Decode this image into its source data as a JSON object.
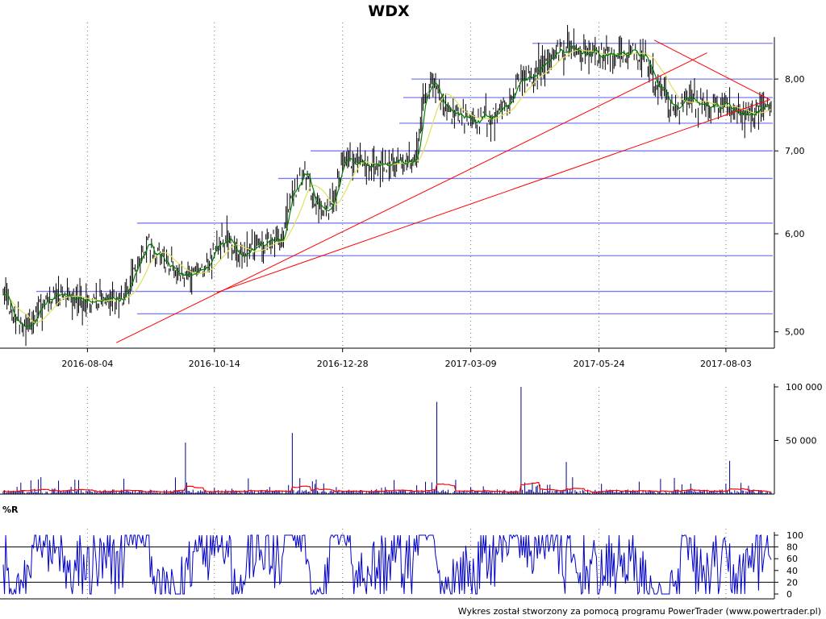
{
  "chart_data": [
    {
      "type": "ohlc",
      "title": "WDX",
      "x_tick_labels": [
        "2016-08-04",
        "2016-10-14",
        "2016-12-28",
        "2017-03-09",
        "2017-05-24",
        "2017-08-03"
      ],
      "y_tick_labels": [
        "5,00",
        "6,00",
        "7,00",
        "8,00"
      ],
      "y_ticks": [
        5.0,
        6.0,
        7.0,
        8.0
      ],
      "y_scale": "log",
      "ylim": [
        4.85,
        8.65
      ],
      "grid": true,
      "grid_lines_y": [
        8.55,
        8.0,
        7.73,
        7.37,
        7.0,
        6.65,
        6.12,
        5.76,
        5.39,
        5.17
      ],
      "price_path": [
        [
          0,
          5.45
        ],
        [
          8,
          5.12
        ],
        [
          20,
          5.0
        ],
        [
          30,
          5.28
        ],
        [
          45,
          5.35
        ],
        [
          60,
          5.3
        ],
        [
          80,
          5.28
        ],
        [
          95,
          5.32
        ],
        [
          105,
          5.6
        ],
        [
          115,
          5.9
        ],
        [
          125,
          5.72
        ],
        [
          135,
          5.6
        ],
        [
          145,
          5.55
        ],
        [
          155,
          5.6
        ],
        [
          165,
          5.72
        ],
        [
          170,
          5.92
        ],
        [
          180,
          5.95
        ],
        [
          190,
          5.75
        ],
        [
          200,
          5.85
        ],
        [
          212,
          5.92
        ],
        [
          222,
          5.92
        ],
        [
          230,
          6.45
        ],
        [
          240,
          6.75
        ],
        [
          248,
          6.35
        ],
        [
          258,
          6.25
        ],
        [
          265,
          6.55
        ],
        [
          272,
          6.9
        ],
        [
          285,
          6.85
        ],
        [
          300,
          6.82
        ],
        [
          315,
          6.85
        ],
        [
          325,
          6.85
        ],
        [
          330,
          7.0
        ],
        [
          335,
          7.7
        ],
        [
          342,
          7.95
        ],
        [
          350,
          7.65
        ],
        [
          360,
          7.5
        ],
        [
          375,
          7.4
        ],
        [
          390,
          7.48
        ],
        [
          400,
          7.6
        ],
        [
          410,
          7.95
        ],
        [
          425,
          8.1
        ],
        [
          435,
          8.35
        ],
        [
          450,
          8.45
        ],
        [
          465,
          8.4
        ],
        [
          480,
          8.35
        ],
        [
          495,
          8.4
        ],
        [
          505,
          8.4
        ],
        [
          512,
          8.3
        ],
        [
          520,
          7.9
        ],
        [
          528,
          7.7
        ],
        [
          535,
          7.55
        ],
        [
          545,
          7.7
        ],
        [
          555,
          7.62
        ],
        [
          570,
          7.58
        ],
        [
          580,
          7.58
        ],
        [
          590,
          7.45
        ],
        [
          600,
          7.55
        ],
        [
          610,
          7.6
        ]
      ],
      "moving_averages": [
        {
          "name": "short",
          "color": "#008000"
        },
        {
          "name": "long",
          "color": "#e0e060"
        }
      ],
      "trend_lines": [
        {
          "color": "#ff0000",
          "from": [
            90,
            4.9
          ],
          "to": [
            560,
            8.4
          ]
        },
        {
          "color": "#ff0000",
          "from": [
            170,
            5.38
          ],
          "to": [
            610,
            7.7
          ]
        },
        {
          "color": "#ff0000",
          "from": [
            518,
            8.6
          ],
          "to": [
            610,
            7.7
          ]
        }
      ]
    },
    {
      "type": "bar",
      "name": "volume",
      "y_tick_labels": [
        "100 000",
        "50 000"
      ],
      "y_ticks": [
        100000,
        50000
      ],
      "ylim": [
        0,
        100000
      ],
      "bar_color": "#00008b",
      "ma_color": "#ff0000",
      "spikes": [
        [
          145,
          48000
        ],
        [
          230,
          57000
        ],
        [
          345,
          86000
        ],
        [
          412,
          100000
        ],
        [
          448,
          30000
        ],
        [
          578,
          31000
        ]
      ]
    },
    {
      "type": "line",
      "title": "%R",
      "y_tick_labels": [
        "100",
        "80",
        "60",
        "40",
        "20",
        "0"
      ],
      "y_ticks": [
        100,
        80,
        60,
        40,
        20,
        0
      ],
      "ylim": [
        0,
        100
      ],
      "reference_lines": [
        80,
        20
      ],
      "line_color": "#0000cc"
    }
  ],
  "footer": "Wykres został stworzony za pomocą programu PowerTrader (www.powertrader.pl)"
}
